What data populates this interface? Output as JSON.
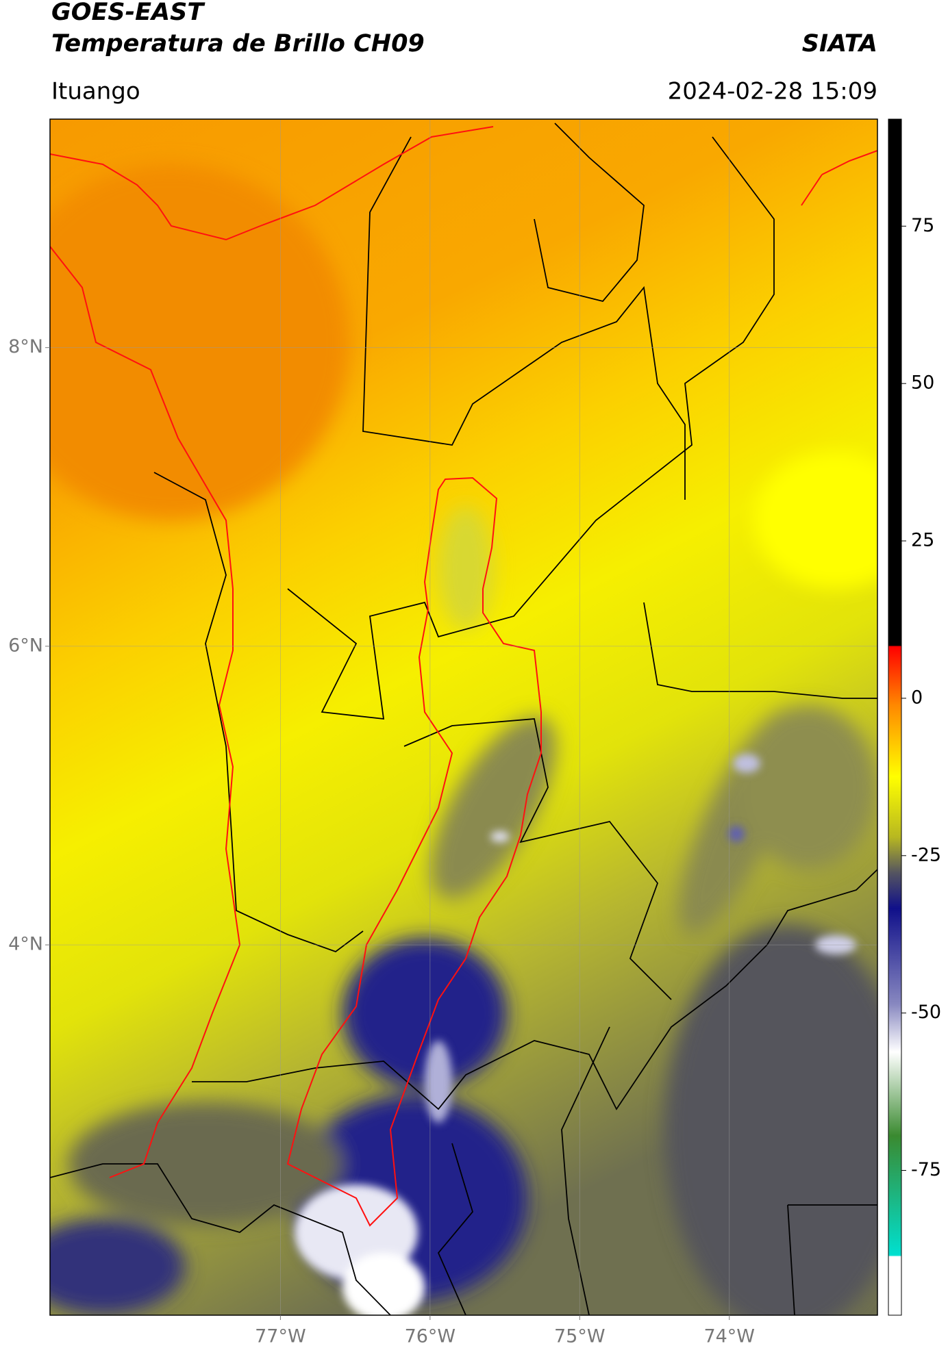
{
  "header": {
    "title_line1": "GOES-EAST",
    "title_line2": "Temperatura de Brillo CH09",
    "source": "SIATA",
    "region": "Ituango",
    "timestamp": "2024-02-28 15:09"
  },
  "map": {
    "xlim": [
      -78.54,
      -73.01
    ],
    "ylim": [
      1.52,
      9.53
    ],
    "xticks": [
      {
        "value": -77,
        "label": "77°W"
      },
      {
        "value": -76,
        "label": "76°W"
      },
      {
        "value": -75,
        "label": "75°W"
      },
      {
        "value": -74,
        "label": "74°W"
      }
    ],
    "yticks": [
      {
        "value": 8,
        "label": "8°N"
      },
      {
        "value": 6,
        "label": "6°N"
      },
      {
        "value": 4,
        "label": "4°N"
      }
    ],
    "grid": true
  },
  "colorbar": {
    "lim": [
      -98,
      92
    ],
    "ticks": [
      75,
      50,
      25,
      0,
      -25,
      -50,
      -75
    ]
  }
}
